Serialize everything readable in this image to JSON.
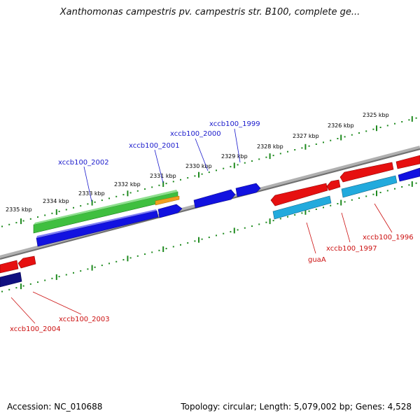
{
  "title": "Xanthomonas campestris pv. campestris str. B100, complete ge...",
  "footer": {
    "accession": "Accession: NC_010688",
    "summary": "Topology: circular; Length: 5,079,002 bp; Genes: 4,528"
  },
  "colors": {
    "backbone": "#7f7f7f",
    "tick": "#1f8a1f",
    "forward_label": "#1a1acc",
    "reverse_label": "#cc1111",
    "green": "#3fbf3f",
    "orange": "#f0a020",
    "blue": "#1212e0",
    "red": "#e61010",
    "cyan": "#22aadd",
    "navy": "#101080"
  },
  "scale_labels": [
    "2325 kbp",
    "2326 kbp",
    "2327 kbp",
    "2328 kbp",
    "2329 kbp",
    "2330 kbp",
    "2331 kbp",
    "2332 kbp",
    "2333 kbp",
    "2334 kbp",
    "2335 kbp"
  ],
  "gene_labels_top": [
    "xccb100_1999",
    "xccb100_2000",
    "xccb100_2001",
    "xccb100_2002"
  ],
  "gene_labels_bottom": [
    "xccb100_1996",
    "xccb100_1997",
    "guaA",
    "xccb100_2003",
    "xccb100_2004"
  ]
}
